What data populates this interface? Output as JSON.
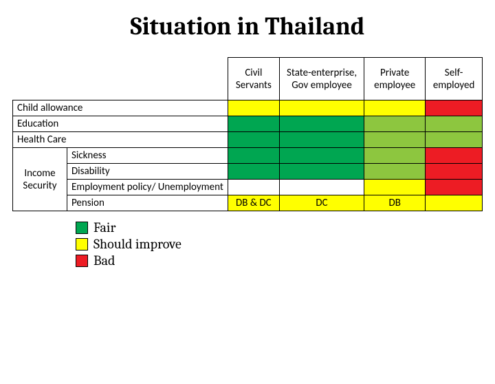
{
  "title": "Situation in Thailand",
  "colors": {
    "fair_dark": "#00a651",
    "fair_light": "#8dc63f",
    "improve": "#ffff00",
    "bad": "#ed1c24",
    "white": "#ffffff",
    "border": "#000000"
  },
  "table": {
    "columns": [
      "Civil Servants",
      "State-enterprise, Gov employee",
      "Private employee",
      "Self-employed"
    ],
    "simple_rows": [
      {
        "label": "Child allowance",
        "cells": [
          {
            "color": "improve"
          },
          {
            "color": "improve"
          },
          {
            "color": "improve"
          },
          {
            "color": "bad"
          }
        ]
      },
      {
        "label": "Education",
        "cells": [
          {
            "color": "fair_dark"
          },
          {
            "color": "fair_dark"
          },
          {
            "color": "fair_light"
          },
          {
            "color": "fair_light"
          }
        ]
      },
      {
        "label": "Health Care",
        "cells": [
          {
            "color": "fair_dark"
          },
          {
            "color": "fair_dark"
          },
          {
            "color": "fair_light"
          },
          {
            "color": "fair_light"
          }
        ]
      }
    ],
    "group": {
      "label": "Income Security",
      "rows": [
        {
          "label": "Sickness",
          "cells": [
            {
              "color": "fair_dark"
            },
            {
              "color": "fair_dark"
            },
            {
              "color": "fair_light"
            },
            {
              "color": "bad"
            }
          ]
        },
        {
          "label": "Disability",
          "cells": [
            {
              "color": "fair_dark"
            },
            {
              "color": "fair_dark"
            },
            {
              "color": "fair_light"
            },
            {
              "color": "bad"
            }
          ]
        },
        {
          "label": "Employment policy/ Unemployment",
          "cells": [
            {
              "color": "white"
            },
            {
              "color": "white"
            },
            {
              "color": "improve"
            },
            {
              "color": "bad"
            }
          ]
        },
        {
          "label": "Pension",
          "cells": [
            {
              "color": "improve",
              "text": "DB & DC"
            },
            {
              "color": "improve",
              "text": "DC"
            },
            {
              "color": "improve",
              "text": "DB"
            },
            {
              "color": "improve"
            }
          ]
        }
      ]
    }
  },
  "legend": [
    {
      "swatch": "fair_dark",
      "label": "Fair"
    },
    {
      "swatch": "improve",
      "label": "Should improve"
    },
    {
      "swatch": "bad",
      "label": "Bad"
    }
  ]
}
